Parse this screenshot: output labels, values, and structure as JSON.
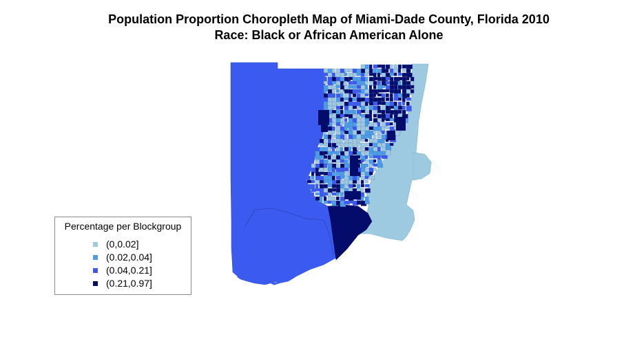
{
  "title": {
    "line1": "Population Proportion Choropleth Map of Miami-Dade County, Florida 2010",
    "line2": "Race: Black or African American Alone"
  },
  "legend": {
    "title": "Percentage per Blockgroup",
    "items": [
      {
        "label": "(0,0.02]",
        "color": "#9ecae1"
      },
      {
        "label": "(0.02,0.04]",
        "color": "#4a9de8"
      },
      {
        "label": "(0.04,0.21]",
        "color": "#3b5bf0"
      },
      {
        "label": "(0.21,0.97]",
        "color": "#030b6b"
      }
    ]
  },
  "map": {
    "region": "Miami-Dade County, Florida",
    "year": "2010",
    "variable": "Black or African American Alone",
    "unit": "Blockgroup"
  }
}
